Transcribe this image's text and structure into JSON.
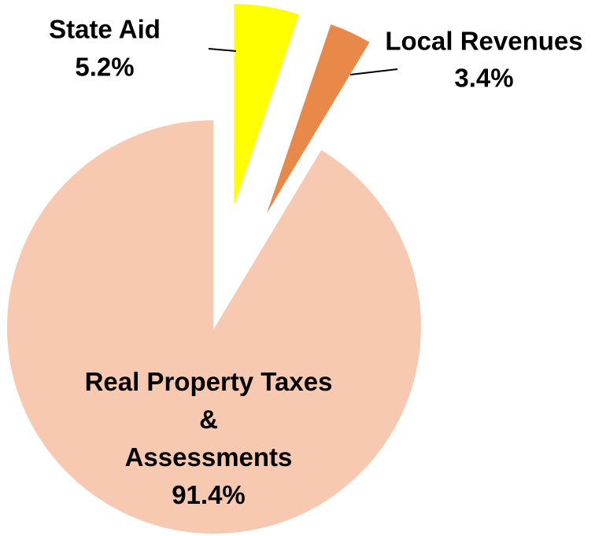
{
  "chart_data": {
    "type": "pie",
    "categories": [
      "State Aid",
      "Local Revenues",
      "Real Property Taxes\n&\nAssessments"
    ],
    "values": [
      5.2,
      3.4,
      91.4
    ],
    "value_labels": [
      "5.2%",
      "3.4%",
      "91.4%"
    ],
    "colors": [
      "#ffff00",
      "#e8894a",
      "#f8c9b1"
    ]
  }
}
